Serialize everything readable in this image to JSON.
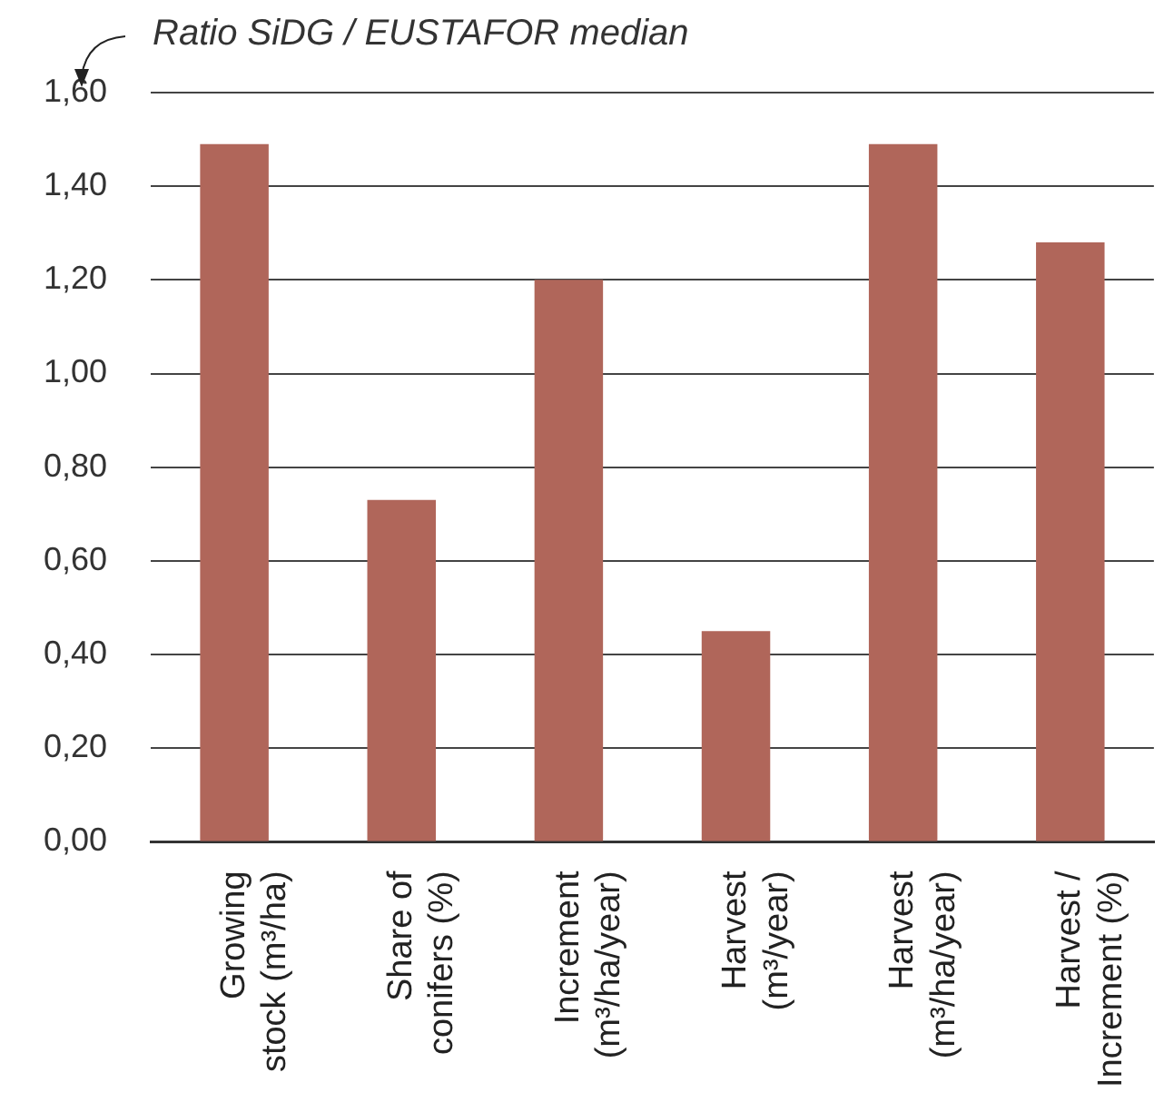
{
  "chart_data": {
    "type": "bar",
    "ylabel": "Ratio SiDG / EUSTAFOR median",
    "categories": [
      "Growing\nstock (m³/ha)",
      "Share of\nconifers (%)",
      "Increment\n(m³/ha/year)",
      "Harvest\n(m³/year)",
      "Harvest\n(m³/ha/year)",
      "Harvest /\nIncrement (%)"
    ],
    "values": [
      1.49,
      0.73,
      1.2,
      0.45,
      1.49,
      1.28
    ],
    "color": "#b0665a",
    "ylim": [
      0,
      1.6
    ],
    "yticks": [
      {
        "value": 0,
        "label": "0,00"
      },
      {
        "value": 0.2,
        "label": "0,20"
      },
      {
        "value": 0.4,
        "label": "0,40"
      },
      {
        "value": 0.6,
        "label": "0,60"
      },
      {
        "value": 0.8,
        "label": "0,80"
      },
      {
        "value": 1.0,
        "label": "1,00"
      },
      {
        "value": 1.2,
        "label": "1,20"
      },
      {
        "value": 1.4,
        "label": "1,40"
      },
      {
        "value": 1.6,
        "label": "1,60"
      }
    ],
    "grid": "y",
    "legend": false
  }
}
